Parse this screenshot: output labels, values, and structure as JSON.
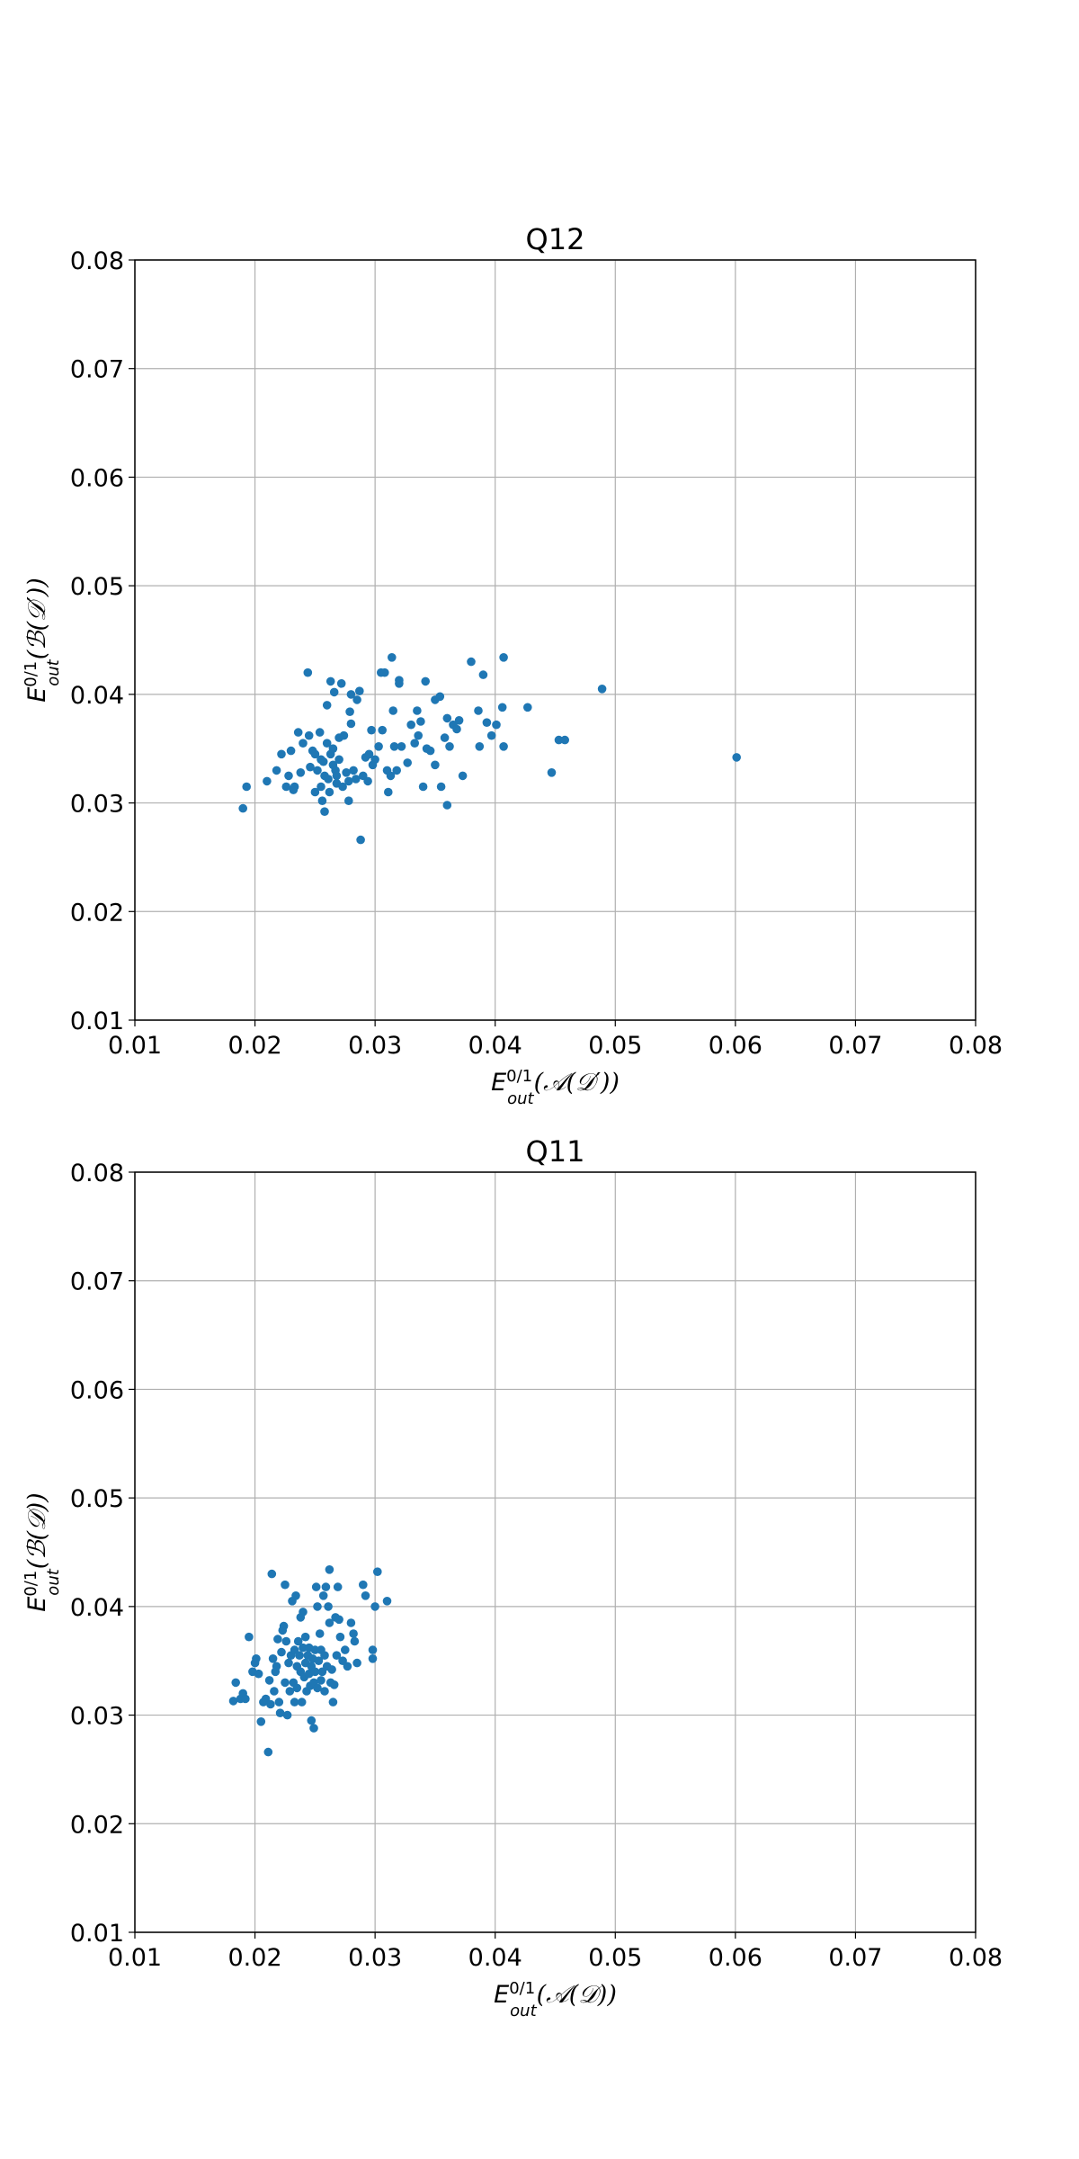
{
  "colors": {
    "point": "#1f77b4",
    "grid": "#b0b0b0",
    "frame": "#000000"
  },
  "chart_data": [
    {
      "type": "scatter",
      "title": "Q12",
      "xlabel": {
        "main": "E",
        "sup": "0/1",
        "sub": "out",
        "arg": "(𝒜(𝒟′))"
      },
      "ylabel": {
        "main": "E",
        "sup": "0/1",
        "sub": "out",
        "arg": "(ℬ(𝒟′))"
      },
      "xlim": [
        0.01,
        0.08
      ],
      "ylim": [
        0.01,
        0.08
      ],
      "xticks": [
        "0.01",
        "0.02",
        "0.03",
        "0.04",
        "0.05",
        "0.06",
        "0.07",
        "0.08"
      ],
      "yticks": [
        "0.01",
        "0.02",
        "0.03",
        "0.04",
        "0.05",
        "0.06",
        "0.07",
        "0.08"
      ],
      "grid": true,
      "points": [
        [
          0.019,
          0.0295
        ],
        [
          0.0193,
          0.0315
        ],
        [
          0.021,
          0.032
        ],
        [
          0.0218,
          0.033
        ],
        [
          0.0222,
          0.0345
        ],
        [
          0.0226,
          0.0315
        ],
        [
          0.0228,
          0.0325
        ],
        [
          0.023,
          0.0348
        ],
        [
          0.0232,
          0.0312
        ],
        [
          0.0233,
          0.0315
        ],
        [
          0.0236,
          0.0365
        ],
        [
          0.0238,
          0.0328
        ],
        [
          0.024,
          0.0355
        ],
        [
          0.0244,
          0.042
        ],
        [
          0.0245,
          0.0362
        ],
        [
          0.0246,
          0.0333
        ],
        [
          0.0248,
          0.0348
        ],
        [
          0.025,
          0.0345
        ],
        [
          0.025,
          0.031
        ],
        [
          0.0252,
          0.033
        ],
        [
          0.0254,
          0.0365
        ],
        [
          0.0255,
          0.034
        ],
        [
          0.0255,
          0.0315
        ],
        [
          0.0256,
          0.0302
        ],
        [
          0.0257,
          0.0338
        ],
        [
          0.0258,
          0.0325
        ],
        [
          0.0258,
          0.0292
        ],
        [
          0.026,
          0.039
        ],
        [
          0.026,
          0.0355
        ],
        [
          0.0261,
          0.0322
        ],
        [
          0.0262,
          0.031
        ],
        [
          0.0263,
          0.0412
        ],
        [
          0.0263,
          0.0345
        ],
        [
          0.0265,
          0.0335
        ],
        [
          0.0265,
          0.035
        ],
        [
          0.0266,
          0.0402
        ],
        [
          0.0267,
          0.033
        ],
        [
          0.0268,
          0.0325
        ],
        [
          0.0268,
          0.0318
        ],
        [
          0.027,
          0.034
        ],
        [
          0.027,
          0.036
        ],
        [
          0.0272,
          0.041
        ],
        [
          0.0273,
          0.0315
        ],
        [
          0.0274,
          0.0362
        ],
        [
          0.0276,
          0.0328
        ],
        [
          0.0278,
          0.032
        ],
        [
          0.0278,
          0.0302
        ],
        [
          0.0279,
          0.0384
        ],
        [
          0.028,
          0.04
        ],
        [
          0.028,
          0.0373
        ],
        [
          0.0282,
          0.033
        ],
        [
          0.0284,
          0.0322
        ],
        [
          0.0285,
          0.0395
        ],
        [
          0.0287,
          0.0403
        ],
        [
          0.0288,
          0.0266
        ],
        [
          0.029,
          0.0325
        ],
        [
          0.0292,
          0.0342
        ],
        [
          0.0294,
          0.032
        ],
        [
          0.0295,
          0.0345
        ],
        [
          0.0297,
          0.0367
        ],
        [
          0.0298,
          0.0335
        ],
        [
          0.03,
          0.034
        ],
        [
          0.0303,
          0.0352
        ],
        [
          0.0305,
          0.042
        ],
        [
          0.0306,
          0.0367
        ],
        [
          0.0308,
          0.042
        ],
        [
          0.031,
          0.033
        ],
        [
          0.0311,
          0.031
        ],
        [
          0.0313,
          0.0325
        ],
        [
          0.0314,
          0.0434
        ],
        [
          0.0315,
          0.0385
        ],
        [
          0.0316,
          0.0352
        ],
        [
          0.0318,
          0.033
        ],
        [
          0.032,
          0.0413
        ],
        [
          0.032,
          0.041
        ],
        [
          0.0322,
          0.0352
        ],
        [
          0.0327,
          0.0337
        ],
        [
          0.033,
          0.0372
        ],
        [
          0.0333,
          0.0355
        ],
        [
          0.0335,
          0.0385
        ],
        [
          0.0336,
          0.0362
        ],
        [
          0.0338,
          0.0375
        ],
        [
          0.034,
          0.0315
        ],
        [
          0.0342,
          0.0412
        ],
        [
          0.0343,
          0.035
        ],
        [
          0.0346,
          0.0348
        ],
        [
          0.035,
          0.0335
        ],
        [
          0.035,
          0.0395
        ],
        [
          0.0354,
          0.0398
        ],
        [
          0.0355,
          0.0315
        ],
        [
          0.0358,
          0.036
        ],
        [
          0.036,
          0.0298
        ],
        [
          0.036,
          0.0378
        ],
        [
          0.0362,
          0.0352
        ],
        [
          0.0365,
          0.0372
        ],
        [
          0.0368,
          0.0368
        ],
        [
          0.037,
          0.0376
        ],
        [
          0.0373,
          0.0325
        ],
        [
          0.038,
          0.043
        ],
        [
          0.0386,
          0.0385
        ],
        [
          0.0387,
          0.0352
        ],
        [
          0.039,
          0.0418
        ],
        [
          0.0393,
          0.0374
        ],
        [
          0.0397,
          0.0362
        ],
        [
          0.0401,
          0.0372
        ],
        [
          0.0406,
          0.0388
        ],
        [
          0.0407,
          0.0434
        ],
        [
          0.0407,
          0.0352
        ],
        [
          0.0427,
          0.0388
        ],
        [
          0.0447,
          0.0328
        ],
        [
          0.0453,
          0.0358
        ],
        [
          0.0458,
          0.0358
        ],
        [
          0.0489,
          0.0405
        ],
        [
          0.0601,
          0.0342
        ]
      ]
    },
    {
      "type": "scatter",
      "title": "Q11",
      "xlabel": {
        "main": "E",
        "sup": "0/1",
        "sub": "out",
        "arg": "(𝒜(𝒟))"
      },
      "ylabel": {
        "main": "E",
        "sup": "0/1",
        "sub": "out",
        "arg": "(ℬ(𝒟))"
      },
      "xlim": [
        0.01,
        0.08
      ],
      "ylim": [
        0.01,
        0.08
      ],
      "xticks": [
        "0.01",
        "0.02",
        "0.03",
        "0.04",
        "0.05",
        "0.06",
        "0.07",
        "0.08"
      ],
      "yticks": [
        "0.01",
        "0.02",
        "0.03",
        "0.04",
        "0.05",
        "0.06",
        "0.07",
        "0.08"
      ],
      "grid": true,
      "points": [
        [
          0.0182,
          0.0313
        ],
        [
          0.0184,
          0.033
        ],
        [
          0.0188,
          0.0315
        ],
        [
          0.019,
          0.032
        ],
        [
          0.0192,
          0.0315
        ],
        [
          0.0195,
          0.0372
        ],
        [
          0.0198,
          0.034
        ],
        [
          0.02,
          0.0348
        ],
        [
          0.0201,
          0.0352
        ],
        [
          0.0203,
          0.0338
        ],
        [
          0.0205,
          0.0294
        ],
        [
          0.0207,
          0.0312
        ],
        [
          0.0209,
          0.0315
        ],
        [
          0.0211,
          0.0266
        ],
        [
          0.0212,
          0.0332
        ],
        [
          0.0213,
          0.031
        ],
        [
          0.0214,
          0.043
        ],
        [
          0.0215,
          0.0352
        ],
        [
          0.0216,
          0.0322
        ],
        [
          0.0217,
          0.034
        ],
        [
          0.0218,
          0.0345
        ],
        [
          0.0219,
          0.037
        ],
        [
          0.022,
          0.0312
        ],
        [
          0.0221,
          0.0302
        ],
        [
          0.0222,
          0.0358
        ],
        [
          0.0223,
          0.0378
        ],
        [
          0.0224,
          0.0382
        ],
        [
          0.0225,
          0.042
        ],
        [
          0.0225,
          0.033
        ],
        [
          0.0226,
          0.0368
        ],
        [
          0.0227,
          0.03
        ],
        [
          0.0228,
          0.0348
        ],
        [
          0.0229,
          0.0322
        ],
        [
          0.023,
          0.0355
        ],
        [
          0.0231,
          0.0405
        ],
        [
          0.0232,
          0.033
        ],
        [
          0.0233,
          0.036
        ],
        [
          0.0233,
          0.0312
        ],
        [
          0.0234,
          0.041
        ],
        [
          0.0235,
          0.0345
        ],
        [
          0.0235,
          0.0325
        ],
        [
          0.0236,
          0.0368
        ],
        [
          0.0237,
          0.0355
        ],
        [
          0.0238,
          0.039
        ],
        [
          0.0238,
          0.034
        ],
        [
          0.0239,
          0.0312
        ],
        [
          0.024,
          0.0362
        ],
        [
          0.024,
          0.0395
        ],
        [
          0.0241,
          0.0335
        ],
        [
          0.0242,
          0.0348
        ],
        [
          0.0242,
          0.0372
        ],
        [
          0.0243,
          0.0322
        ],
        [
          0.0244,
          0.0355
        ],
        [
          0.0245,
          0.0338
        ],
        [
          0.0245,
          0.0362
        ],
        [
          0.0246,
          0.0327
        ],
        [
          0.0247,
          0.0345
        ],
        [
          0.0247,
          0.0295
        ],
        [
          0.0248,
          0.0352
        ],
        [
          0.0249,
          0.033
        ],
        [
          0.0249,
          0.0288
        ],
        [
          0.025,
          0.036
        ],
        [
          0.025,
          0.034
        ],
        [
          0.0251,
          0.0418
        ],
        [
          0.0252,
          0.0325
        ],
        [
          0.0252,
          0.04
        ],
        [
          0.0253,
          0.035
        ],
        [
          0.0254,
          0.0375
        ],
        [
          0.0255,
          0.0332
        ],
        [
          0.0255,
          0.036
        ],
        [
          0.0256,
          0.034
        ],
        [
          0.0257,
          0.041
        ],
        [
          0.0258,
          0.0322
        ],
        [
          0.0258,
          0.0355
        ],
        [
          0.0259,
          0.0418
        ],
        [
          0.026,
          0.0345
        ],
        [
          0.0261,
          0.04
        ],
        [
          0.0262,
          0.0434
        ],
        [
          0.0262,
          0.0385
        ],
        [
          0.0263,
          0.033
        ],
        [
          0.0264,
          0.0342
        ],
        [
          0.0265,
          0.0312
        ],
        [
          0.0266,
          0.0328
        ],
        [
          0.0267,
          0.039
        ],
        [
          0.0268,
          0.0355
        ],
        [
          0.0269,
          0.0418
        ],
        [
          0.027,
          0.0388
        ],
        [
          0.0271,
          0.0372
        ],
        [
          0.0273,
          0.035
        ],
        [
          0.0275,
          0.036
        ],
        [
          0.0277,
          0.0345
        ],
        [
          0.028,
          0.0385
        ],
        [
          0.0282,
          0.0375
        ],
        [
          0.0283,
          0.0368
        ],
        [
          0.0285,
          0.0348
        ],
        [
          0.029,
          0.042
        ],
        [
          0.0292,
          0.041
        ],
        [
          0.0298,
          0.0352
        ],
        [
          0.0298,
          0.036
        ],
        [
          0.03,
          0.04
        ],
        [
          0.0302,
          0.0432
        ],
        [
          0.031,
          0.0405
        ]
      ]
    }
  ]
}
